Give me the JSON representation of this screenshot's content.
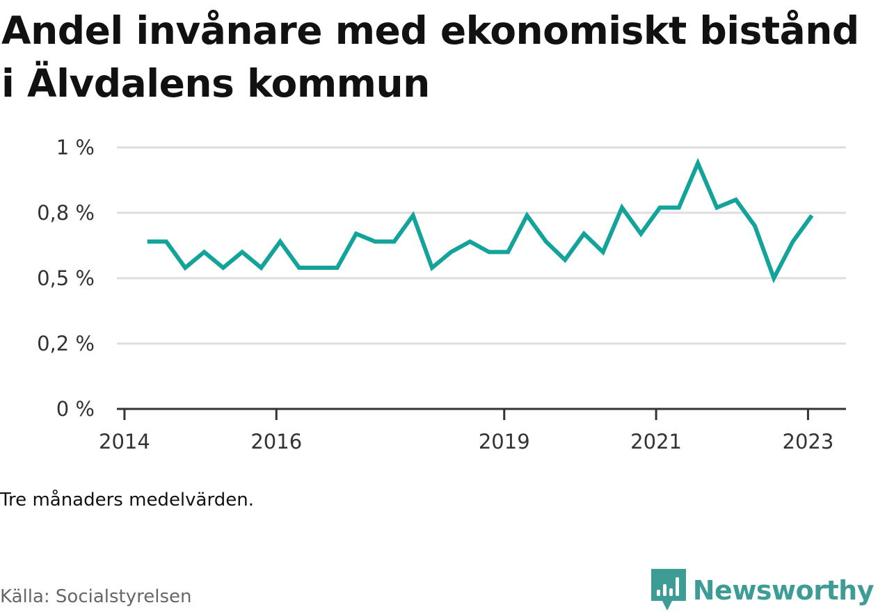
{
  "title": "Andel invånare med ekonomiskt bistånd i Älvdalens kommun",
  "note": "Tre månaders medelvärden.",
  "source": "Källa: Socialstyrelsen",
  "brand": {
    "name": "Newsworthy",
    "icon": "newsworthy-logo-icon",
    "color": "#3d9d96"
  },
  "colors": {
    "line": "#14a39a",
    "grid": "#dddddd",
    "axis": "#333333"
  },
  "chart_data": {
    "type": "line",
    "title": "Andel invånare med ekonomiskt bistånd i Älvdalens kommun",
    "xlabel": "",
    "ylabel": "",
    "ylim": [
      0,
      1
    ],
    "xlim": [
      2013.9,
      2023.5
    ],
    "grid": true,
    "y_ticks": [
      {
        "value": 0,
        "label": "0 %"
      },
      {
        "value": 0.25,
        "label": "0,2 %"
      },
      {
        "value": 0.5,
        "label": "0,5 %"
      },
      {
        "value": 0.75,
        "label": "0,8 %"
      },
      {
        "value": 1,
        "label": "1 %"
      }
    ],
    "x_ticks": [
      {
        "value": 2014,
        "label": "2014"
      },
      {
        "value": 2016,
        "label": "2016"
      },
      {
        "value": 2019,
        "label": "2019"
      },
      {
        "value": 2021,
        "label": "2021"
      },
      {
        "value": 2023,
        "label": "2023"
      }
    ],
    "series": [
      {
        "x": [
          2014.3,
          2014.55,
          2014.8,
          2015.05,
          2015.3,
          2015.55,
          2015.8,
          2016.05,
          2016.3,
          2016.55,
          2016.8,
          2017.05,
          2017.3,
          2017.55,
          2017.8,
          2018.05,
          2018.3,
          2018.55,
          2018.8,
          2019.05,
          2019.3,
          2019.55,
          2019.8,
          2020.05,
          2020.3,
          2020.55,
          2020.8,
          2021.05,
          2021.3,
          2021.55,
          2021.8,
          2022.05,
          2022.3,
          2022.55,
          2022.8,
          2023.05
        ],
        "values": [
          0.64,
          0.64,
          0.54,
          0.6,
          0.54,
          0.6,
          0.54,
          0.64,
          0.54,
          0.54,
          0.54,
          0.67,
          0.64,
          0.64,
          0.74,
          0.54,
          0.6,
          0.64,
          0.6,
          0.6,
          0.74,
          0.64,
          0.57,
          0.67,
          0.6,
          0.77,
          0.67,
          0.77,
          0.77,
          0.94,
          0.77,
          0.8,
          0.7,
          0.5,
          0.64,
          0.74
        ]
      }
    ]
  }
}
